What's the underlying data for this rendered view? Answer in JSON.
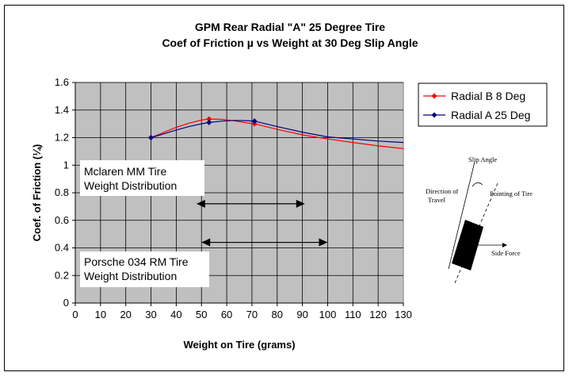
{
  "chart_data": {
    "type": "line",
    "title": "GPM Rear Radial \"A\" 25 Degree Tire",
    "subtitle": "Coef of Friction µ vs Weight at 30 Deg Slip Angle",
    "xlabel": "Weight on Tire (grams)",
    "ylabel": "Coef. of Friction (¼)",
    "xlim": [
      0,
      130
    ],
    "ylim": [
      0,
      1.6
    ],
    "xticks": [
      "0",
      "10",
      "20",
      "30",
      "40",
      "50",
      "60",
      "70",
      "80",
      "90",
      "100",
      "110",
      "120",
      "130"
    ],
    "yticks": [
      "0",
      "0.2",
      "0.4",
      "0.6",
      "0.8",
      "1",
      "1.2",
      "1.4",
      "1.6"
    ],
    "grid": true,
    "plot_background": "#c0c0c0",
    "legend_position": "right",
    "series": [
      {
        "name": "Radial B 8 Deg",
        "color": "#ff0000",
        "marker": "diamond",
        "points": [
          [
            30,
            1.2
          ],
          [
            53,
            1.335
          ],
          [
            71,
            1.3
          ]
        ],
        "curve": [
          [
            30,
            1.2
          ],
          [
            35,
            1.238
          ],
          [
            40,
            1.275
          ],
          [
            45,
            1.305
          ],
          [
            50,
            1.327
          ],
          [
            53,
            1.335
          ],
          [
            58,
            1.333
          ],
          [
            63,
            1.322
          ],
          [
            68,
            1.307
          ],
          [
            71,
            1.3
          ],
          [
            80,
            1.26
          ],
          [
            90,
            1.22
          ],
          [
            100,
            1.19
          ],
          [
            110,
            1.165
          ],
          [
            120,
            1.14
          ],
          [
            130,
            1.12
          ]
        ]
      },
      {
        "name": "Radial A 25 Deg",
        "color": "#000080",
        "marker": "diamond",
        "points": [
          [
            30,
            1.2
          ],
          [
            53,
            1.31
          ],
          [
            71,
            1.32
          ]
        ],
        "curve": [
          [
            30,
            1.2
          ],
          [
            35,
            1.227
          ],
          [
            40,
            1.255
          ],
          [
            45,
            1.28
          ],
          [
            50,
            1.3
          ],
          [
            53,
            1.31
          ],
          [
            58,
            1.32
          ],
          [
            63,
            1.325
          ],
          [
            68,
            1.323
          ],
          [
            71,
            1.32
          ],
          [
            80,
            1.28
          ],
          [
            90,
            1.24
          ],
          [
            100,
            1.205
          ],
          [
            110,
            1.19
          ],
          [
            120,
            1.175
          ],
          [
            130,
            1.165
          ]
        ]
      }
    ],
    "annotations": [
      {
        "lines": [
          "Mclaren MM Tire",
          "Weight Distribution"
        ],
        "range_x": [
          48,
          91
        ],
        "range_y": 0.72
      },
      {
        "lines": [
          "Porsche 034 RM Tire",
          "Weight Distribution"
        ],
        "range_x": [
          50,
          100
        ],
        "range_y": 0.44
      }
    ]
  },
  "diagram": {
    "labels": [
      "Slip Angle",
      "Direction of",
      "Travel",
      "Pointing of Tire",
      "Side Force"
    ]
  }
}
